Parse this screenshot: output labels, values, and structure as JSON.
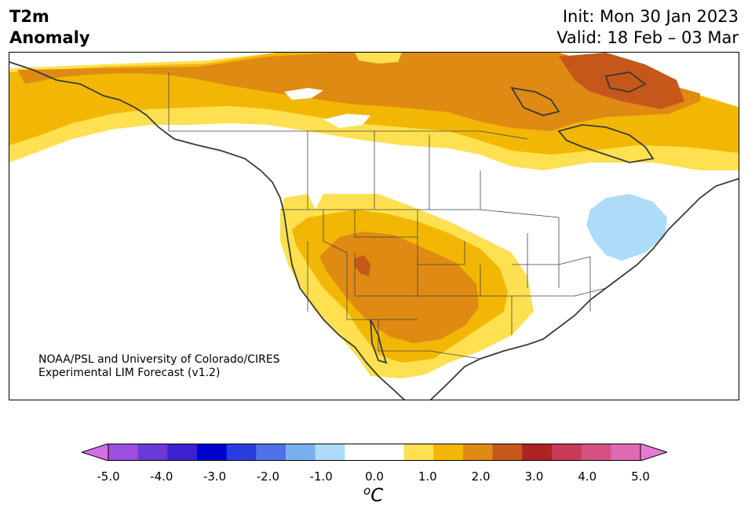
{
  "header": {
    "title_line1": "T2m",
    "title_line2": "Anomaly",
    "init_label": "Init: Mon 30 Jan 2023",
    "valid_label": "Valid: 18 Feb – 03 Mar"
  },
  "map": {
    "region": "North America",
    "credit_line1": "NOAA/PSL and University of Colorado/CIRES",
    "credit_line2": "Experimental LIM Forecast (v1.2)"
  },
  "colorbar": {
    "ticks": [
      "-5.0",
      "-4.0",
      "-3.0",
      "-2.0",
      "-1.0",
      "0.0",
      "1.0",
      "2.0",
      "3.0",
      "4.0",
      "5.0"
    ],
    "unit_prefix": "o",
    "unit_main": "C",
    "colors": [
      "#d36ee8",
      "#9b4ee0",
      "#6a3ad8",
      "#3c22d0",
      "#0000cc",
      "#2a3ee0",
      "#4f72e8",
      "#7ab0f0",
      "#aedcf8",
      "#ffffff",
      "#ffffff",
      "#ffe050",
      "#f2b705",
      "#df8a12",
      "#c6571a",
      "#ae2326",
      "#c83a55",
      "#d45080",
      "#de6ab0",
      "#e67ad8"
    ]
  }
}
